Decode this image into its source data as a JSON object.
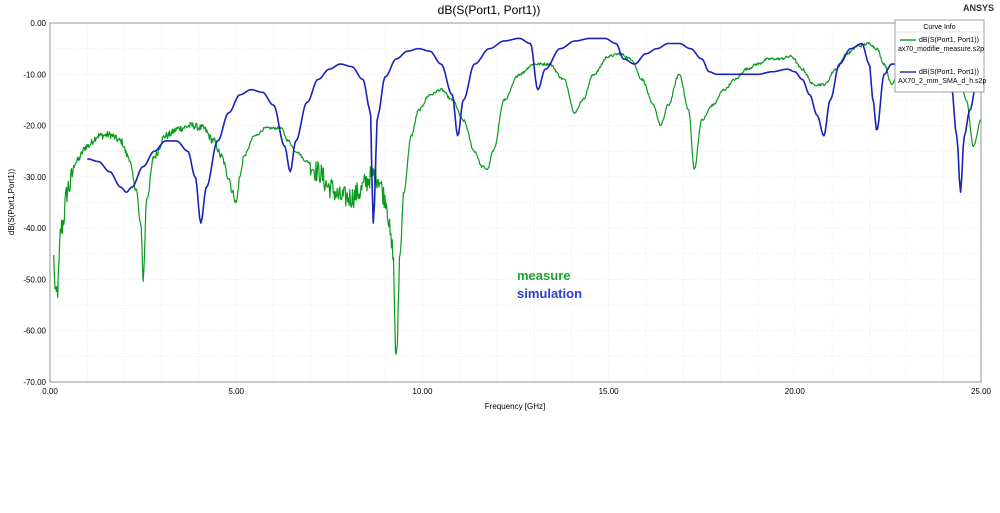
{
  "brand": "ANSYS",
  "chart_data": {
    "type": "line",
    "title": "dB(S(Port1, Port1))",
    "xlabel": "Frequency [GHz]",
    "ylabel": "dB(S(Port1,Port1))",
    "xlim": [
      0,
      25
    ],
    "ylim": [
      -70,
      0
    ],
    "xticks": [
      "0.00",
      "5.00",
      "10.00",
      "15.00",
      "20.00",
      "25.00"
    ],
    "yticks": [
      "0.00",
      "-10.00",
      "-20.00",
      "-30.00",
      "-40.00",
      "-50.00",
      "-60.00",
      "-70.00"
    ],
    "grid": true,
    "legend_title": "Curve Info",
    "legend_position": "top-right",
    "series": [
      {
        "name": "dB(S(Port1, Port1))",
        "file": "ax70_modifie_measure.s2p",
        "color": "#0a9a1e",
        "noisy": true,
        "x": [
          0.1,
          0.15,
          0.2,
          0.3,
          0.5,
          0.7,
          1.0,
          1.3,
          1.6,
          1.9,
          2.1,
          2.3,
          2.45,
          2.5,
          2.6,
          2.8,
          3.1,
          3.5,
          3.8,
          4.1,
          4.4,
          4.6,
          4.8,
          4.9,
          5.0,
          5.1,
          5.2,
          5.5,
          5.8,
          6.2,
          6.4,
          6.6,
          6.9,
          7.2,
          7.5,
          7.8,
          8.1,
          8.3,
          8.5,
          8.6,
          8.7,
          8.8,
          9.0,
          9.2,
          9.3,
          9.4,
          9.5,
          9.7,
          9.9,
          10.2,
          10.5,
          10.8,
          11.1,
          11.4,
          11.6,
          11.75,
          11.9,
          12.2,
          12.6,
          13.0,
          13.4,
          13.8,
          14.1,
          14.3,
          14.6,
          15.0,
          15.3,
          15.6,
          15.9,
          16.2,
          16.4,
          16.6,
          16.9,
          17.15,
          17.3,
          17.5,
          17.8,
          18.1,
          18.4,
          18.7,
          19.0,
          19.3,
          19.6,
          19.9,
          20.2,
          20.5,
          20.8,
          21.1,
          21.4,
          21.7,
          22.0,
          22.2,
          22.4,
          22.6,
          22.8,
          23.0,
          23.2,
          23.5,
          23.8,
          24.1,
          24.4,
          24.6,
          24.8,
          25.0
        ],
        "y": [
          -46,
          -54,
          -52,
          -40,
          -32,
          -27,
          -24,
          -22,
          -21.8,
          -23,
          -26,
          -32,
          -40,
          -50,
          -34,
          -26,
          -22,
          -20.5,
          -20,
          -20.5,
          -23,
          -26,
          -30,
          -33,
          -35,
          -30,
          -26,
          -22,
          -20.5,
          -20.5,
          -23,
          -25,
          -27,
          -29,
          -32,
          -34,
          -34,
          -33,
          -31,
          -30,
          -29.5,
          -30,
          -34,
          -44,
          -66,
          -45,
          -33,
          -22,
          -17,
          -14,
          -13,
          -15,
          -19,
          -25,
          -28,
          -28.5,
          -25,
          -15,
          -10,
          -8,
          -8,
          -11,
          -17.5,
          -15,
          -10,
          -6.5,
          -6,
          -7,
          -11,
          -16,
          -20,
          -16,
          -10,
          -17,
          -28.5,
          -19,
          -16,
          -13,
          -11,
          -9,
          -8,
          -7,
          -7,
          -6.5,
          -9,
          -12,
          -12,
          -9,
          -6,
          -4.5,
          -4,
          -5,
          -8,
          -12,
          -9,
          -8,
          -7,
          -7,
          -7,
          -7.5,
          -9,
          -15,
          -24,
          -19
        ]
      },
      {
        "name": "dB(S(Port1, Port1))",
        "file": "AX70_2_mm_SMA_d_h.s2p",
        "color": "#1a22b8",
        "noisy": false,
        "x": [
          1.0,
          1.3,
          1.6,
          1.9,
          2.05,
          2.2,
          2.5,
          2.8,
          3.1,
          3.4,
          3.7,
          3.9,
          4.05,
          4.2,
          4.5,
          4.8,
          5.1,
          5.4,
          5.7,
          6.0,
          6.3,
          6.45,
          6.6,
          6.9,
          7.2,
          7.5,
          7.8,
          8.1,
          8.4,
          8.6,
          8.68,
          8.8,
          9.0,
          9.3,
          9.6,
          9.9,
          10.2,
          10.5,
          10.8,
          10.95,
          11.1,
          11.4,
          11.8,
          12.2,
          12.6,
          12.9,
          13.1,
          13.3,
          13.7,
          14.1,
          14.5,
          14.9,
          15.2,
          15.4,
          15.7,
          16.0,
          16.3,
          16.6,
          16.9,
          17.2,
          17.5,
          17.7,
          17.9,
          18.2,
          18.6,
          19.0,
          19.4,
          19.8,
          20.0,
          20.2,
          20.4,
          20.6,
          20.78,
          20.95,
          21.2,
          21.5,
          21.8,
          22.0,
          22.1,
          22.2,
          22.4,
          22.6,
          22.8,
          23.0,
          23.3,
          23.6,
          23.9,
          24.2,
          24.35,
          24.45,
          24.55,
          24.7,
          24.9,
          25.0
        ],
        "y": [
          -26.5,
          -27,
          -29,
          -32,
          -33,
          -32,
          -28,
          -25,
          -23,
          -23,
          -25,
          -30,
          -39,
          -32,
          -23,
          -17.5,
          -14,
          -13,
          -13.5,
          -16,
          -24,
          -29,
          -23,
          -15.5,
          -11,
          -9,
          -8,
          -8.5,
          -11,
          -17,
          -39,
          -18,
          -10.5,
          -7,
          -5.5,
          -5,
          -5.5,
          -8,
          -14,
          -22,
          -15,
          -8,
          -5,
          -3.5,
          -3,
          -4,
          -13,
          -9,
          -5,
          -3.5,
          -3,
          -3,
          -4,
          -7,
          -8,
          -6,
          -5,
          -4,
          -4,
          -5,
          -7,
          -9.5,
          -10,
          -10,
          -10,
          -10,
          -9.5,
          -9,
          -9.5,
          -11,
          -14,
          -18,
          -22,
          -15,
          -8,
          -5,
          -4,
          -8,
          -15,
          -21,
          -10,
          -8,
          -8,
          -9,
          -10,
          -10.5,
          -11,
          -12,
          -22,
          -33,
          -22,
          -17,
          -11,
          -9
        ]
      }
    ],
    "annotations": [
      {
        "text": "measure",
        "color": "#1aa531"
      },
      {
        "text": "simulation",
        "color": "#2a3fd0"
      }
    ]
  }
}
